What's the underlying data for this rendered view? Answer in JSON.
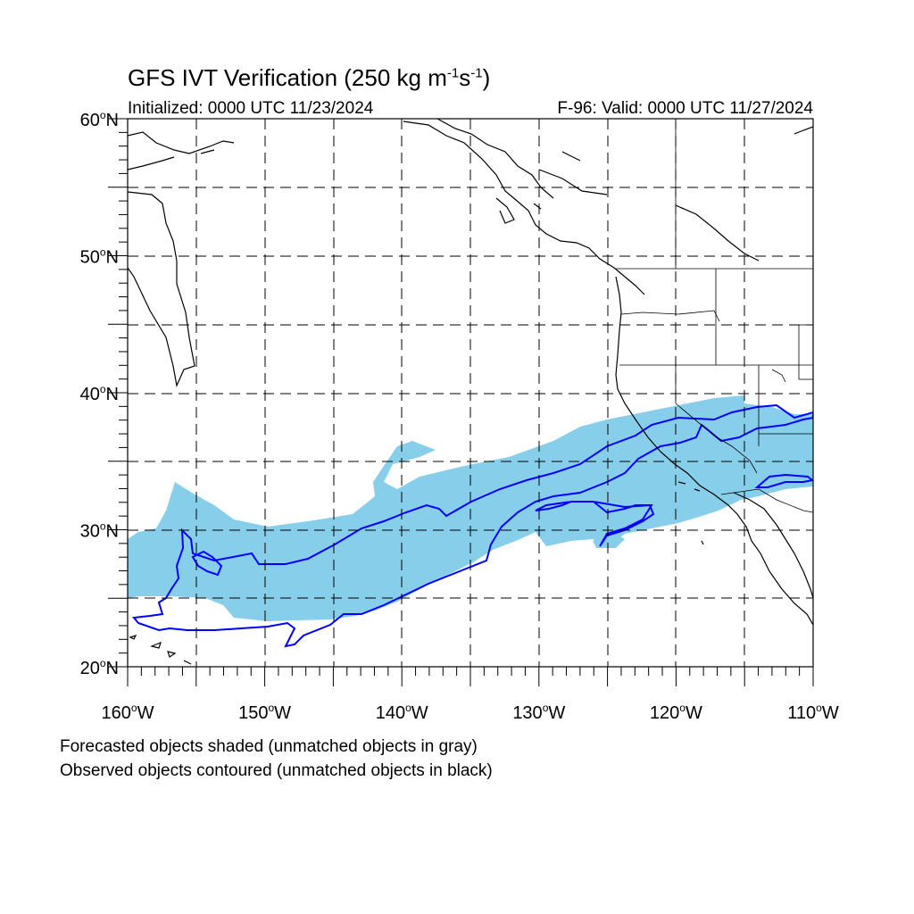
{
  "header": {
    "title_prefix": "GFS IVT Verification (250 kg m",
    "title_exp1": "-1",
    "title_mid": "s",
    "title_exp2": "-1",
    "title_suffix": ")",
    "initialized": "Initialized: 0000 UTC 11/23/2024",
    "valid": "F-96: Valid: 0000 UTC 11/27/2024"
  },
  "map": {
    "lat_range": [
      20,
      60
    ],
    "lon_range": [
      -160,
      -110
    ],
    "lat_labels": [
      {
        "value": 60,
        "deg": "60",
        "hemi": "N"
      },
      {
        "value": 50,
        "deg": "50",
        "hemi": "N"
      },
      {
        "value": 40,
        "deg": "40",
        "hemi": "N"
      },
      {
        "value": 30,
        "deg": "30",
        "hemi": "N"
      },
      {
        "value": 20,
        "deg": "20",
        "hemi": "N"
      }
    ],
    "lon_labels": [
      {
        "value": -160,
        "deg": "160",
        "hemi": "W"
      },
      {
        "value": -150,
        "deg": "150",
        "hemi": "W"
      },
      {
        "value": -140,
        "deg": "140",
        "hemi": "W"
      },
      {
        "value": -130,
        "deg": "130",
        "hemi": "W"
      },
      {
        "value": -120,
        "deg": "120",
        "hemi": "W"
      },
      {
        "value": -110,
        "deg": "110",
        "hemi": "W"
      }
    ],
    "gridlines": "dashed",
    "forecast_color": "#87CEEB",
    "observed_color": "#0000FF",
    "coast_color": "#000000"
  },
  "footnotes": [
    "Forecasted objects shaded (unmatched objects in gray)",
    "Observed objects contoured (unmatched objects in black)"
  ]
}
